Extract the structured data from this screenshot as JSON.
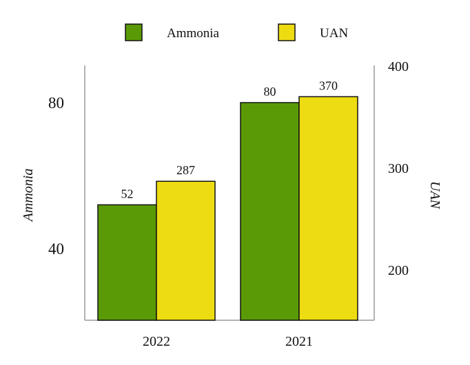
{
  "chart_data": {
    "type": "bar",
    "title": "",
    "categories": [
      "2022",
      "2021"
    ],
    "series": [
      {
        "name": "Ammonia",
        "values": [
          52,
          80
        ],
        "axis": "left",
        "color": "#5b9a07"
      },
      {
        "name": "UAN",
        "values": [
          287,
          370
        ],
        "axis": "right",
        "color": "#eedc12"
      }
    ],
    "left_axis": {
      "label": "Ammonia",
      "ticks": [
        40,
        80
      ],
      "range": [
        22,
        92
      ]
    },
    "right_axis": {
      "label": "UAN",
      "ticks": [
        200,
        300,
        400
      ],
      "range": [
        150,
        400
      ]
    },
    "legend_position": "top",
    "grid": false,
    "data_labels": true
  }
}
